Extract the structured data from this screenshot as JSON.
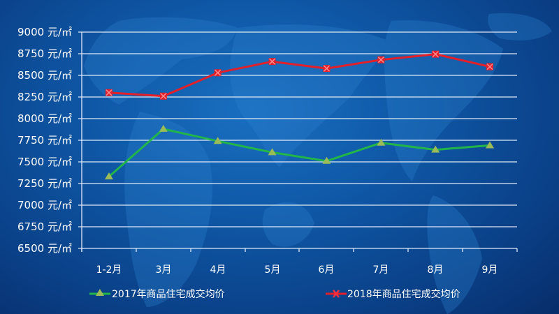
{
  "colors": {
    "background": "#0f59a8",
    "grid": "#ffffff",
    "series_2017_line": "#22b54a",
    "series_2017_marker": "#9bbb59",
    "series_2018_line": "#e3202a",
    "series_2018_marker": "#e3202a"
  },
  "y_axis": {
    "unit": "元/㎡",
    "ticks": [
      "9000 元/㎡",
      "8750 元/㎡",
      "8500 元/㎡",
      "8250 元/㎡",
      "8000 元/㎡",
      "7750 元/㎡",
      "7500 元/㎡",
      "7250 元/㎡",
      "7000 元/㎡",
      "6750 元/㎡",
      "6500 元/㎡"
    ]
  },
  "x_axis": {
    "ticks": [
      "1-2月",
      "3月",
      "4月",
      "5月",
      "6月",
      "7月",
      "8月",
      "9月"
    ]
  },
  "legend": {
    "items": [
      {
        "label": "2017年商品住宅成交均价",
        "marker": "triangle-icon"
      },
      {
        "label": "2018年商品住宅成交均价",
        "marker": "x-marker-icon"
      }
    ]
  },
  "chart_data": {
    "type": "line",
    "title": "",
    "xlabel": "",
    "ylabel": "元/㎡",
    "ylim": [
      6500,
      9000
    ],
    "y_tick_step": 250,
    "grid": true,
    "legend_position": "bottom",
    "categories": [
      "1-2月",
      "3月",
      "4月",
      "5月",
      "6月",
      "7月",
      "8月",
      "9月"
    ],
    "series": [
      {
        "name": "2017年商品住宅成交均价",
        "marker": "triangle",
        "color": "#22b54a",
        "values": [
          7330,
          7880,
          7740,
          7610,
          7510,
          7720,
          7640,
          7690
        ]
      },
      {
        "name": "2018年商品住宅成交均价",
        "marker": "x",
        "color": "#e3202a",
        "values": [
          8300,
          8260,
          8530,
          8660,
          8580,
          8680,
          8745,
          8600
        ]
      }
    ]
  }
}
